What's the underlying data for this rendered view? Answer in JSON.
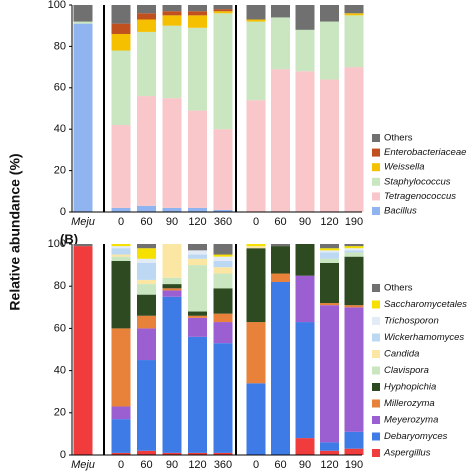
{
  "chart_data": [
    {
      "type": "bar",
      "stacked": true,
      "ylabel": "Relative abundance (%)",
      "categories": [
        "Meju",
        "0",
        "60",
        "90",
        "120",
        "360",
        "0",
        "60",
        "90",
        "120",
        "190"
      ],
      "ylim": [
        0,
        100
      ],
      "yticks": [
        0,
        20,
        40,
        60,
        80,
        100
      ],
      "series": [
        {
          "name": "Bacillus",
          "color": "#8fb4f0",
          "values": [
            91,
            2,
            3,
            2,
            2,
            1,
            0,
            0,
            0,
            0,
            0
          ]
        },
        {
          "name": "Tetragenococcus",
          "color": "#f9c6ca",
          "values": [
            0,
            40,
            53,
            53,
            47,
            39,
            54,
            69,
            68,
            64,
            70
          ]
        },
        {
          "name": "Staphylococcus",
          "color": "#c9e6c1",
          "values": [
            1,
            36,
            31,
            35,
            40,
            56,
            38,
            25,
            20,
            28,
            25
          ]
        },
        {
          "name": "Weissella",
          "color": "#f5c000",
          "values": [
            0,
            8,
            6,
            5,
            6,
            1,
            1,
            0,
            0,
            0,
            1
          ]
        },
        {
          "name": "Enterobacteriaceae",
          "color": "#c0501e",
          "values": [
            0,
            5,
            3,
            2,
            2,
            1,
            0,
            0,
            0,
            0,
            0
          ]
        },
        {
          "name": "Others",
          "color": "#707070",
          "values": [
            8,
            9,
            4,
            3,
            3,
            2,
            7,
            6,
            12,
            8,
            4
          ]
        }
      ]
    },
    {
      "type": "bar",
      "stacked": true,
      "panel_label": "(B)",
      "categories": [
        "Meju",
        "0",
        "60",
        "90",
        "120",
        "360",
        "0",
        "60",
        "90",
        "120",
        "190"
      ],
      "ylim": [
        0,
        100
      ],
      "yticks": [
        0,
        20,
        40,
        60,
        80,
        100
      ],
      "series": [
        {
          "name": "Aspergillus",
          "color": "#f03c3c",
          "values": [
            99,
            1,
            2,
            1,
            1,
            1,
            0,
            0,
            8,
            2,
            3
          ]
        },
        {
          "name": "Debaryomyces",
          "color": "#3f7be6",
          "values": [
            0,
            16,
            43,
            74,
            55,
            52,
            34,
            82,
            55,
            4,
            8
          ]
        },
        {
          "name": "Meyerozyma",
          "color": "#9b5fd2",
          "values": [
            0,
            6,
            15,
            3,
            9,
            10,
            0,
            0,
            22,
            65,
            59
          ]
        },
        {
          "name": "Millerozyma",
          "color": "#e8823a",
          "values": [
            0,
            37,
            6,
            1,
            1,
            4,
            29,
            4,
            0,
            1,
            1
          ]
        },
        {
          "name": "Hyphopichia",
          "color": "#2e4a20",
          "values": [
            0,
            32,
            10,
            2,
            2,
            12,
            35,
            13,
            15,
            19,
            23
          ]
        },
        {
          "name": "Clavispora",
          "color": "#c9e6c1",
          "values": [
            0,
            2,
            5,
            3,
            22,
            7,
            0,
            0,
            0,
            2,
            2
          ]
        },
        {
          "name": "Candida",
          "color": "#fbe6a4",
          "values": [
            0,
            1,
            2,
            16,
            3,
            3,
            1,
            0,
            0,
            0,
            0
          ]
        },
        {
          "name": "Wickerhamomyces",
          "color": "#bcd8f2",
          "values": [
            0,
            3,
            8,
            0,
            2,
            3,
            0,
            0,
            0,
            3,
            1
          ]
        },
        {
          "name": "Trichosporon",
          "color": "#e2ebf6",
          "values": [
            0,
            1,
            2,
            0,
            2,
            2,
            0,
            0,
            0,
            1,
            1
          ]
        },
        {
          "name": "Saccharomycetales",
          "color": "#f5e000",
          "values": [
            0,
            1,
            5,
            0,
            0,
            1,
            1,
            0,
            0,
            1,
            1
          ]
        },
        {
          "name": "Others",
          "color": "#707070",
          "values": [
            1,
            0,
            2,
            0,
            3,
            5,
            0,
            1,
            0,
            2,
            1
          ]
        }
      ]
    }
  ]
}
